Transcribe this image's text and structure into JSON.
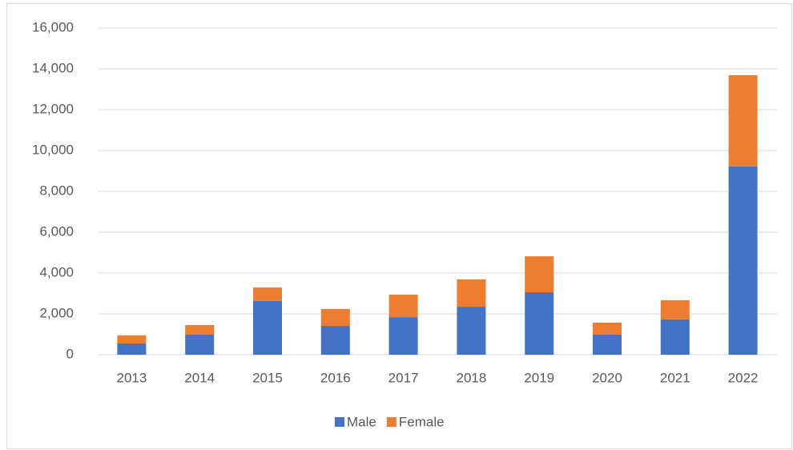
{
  "chart_data": {
    "type": "stacked_bar",
    "categories": [
      "2013",
      "2014",
      "2015",
      "2016",
      "2017",
      "2018",
      "2019",
      "2020",
      "2021",
      "2022"
    ],
    "series": [
      {
        "name": "Male",
        "color": "#4472c4",
        "values": [
          550,
          980,
          2630,
          1410,
          1840,
          2350,
          3060,
          980,
          1730,
          9220
        ]
      },
      {
        "name": "Female",
        "color": "#ed7d31",
        "values": [
          400,
          470,
          660,
          830,
          1100,
          1340,
          1760,
          590,
          940,
          4470
        ]
      }
    ],
    "ylim": [
      0,
      16000
    ],
    "yticks": [
      0,
      {
        "value": 2000,
        "label": "2,000"
      },
      {
        "value": 4000,
        "label": "4,000"
      },
      {
        "value": 6000,
        "label": "6,000"
      },
      {
        "value": 8000,
        "label": "8,000"
      },
      {
        "value": 10000,
        "label": "10,000"
      },
      {
        "value": 12000,
        "label": "12,000"
      },
      {
        "value": 14000,
        "label": "14,000"
      },
      {
        "value": 16000,
        "label": "16,000"
      }
    ],
    "grid": true,
    "legend": "bottom"
  }
}
